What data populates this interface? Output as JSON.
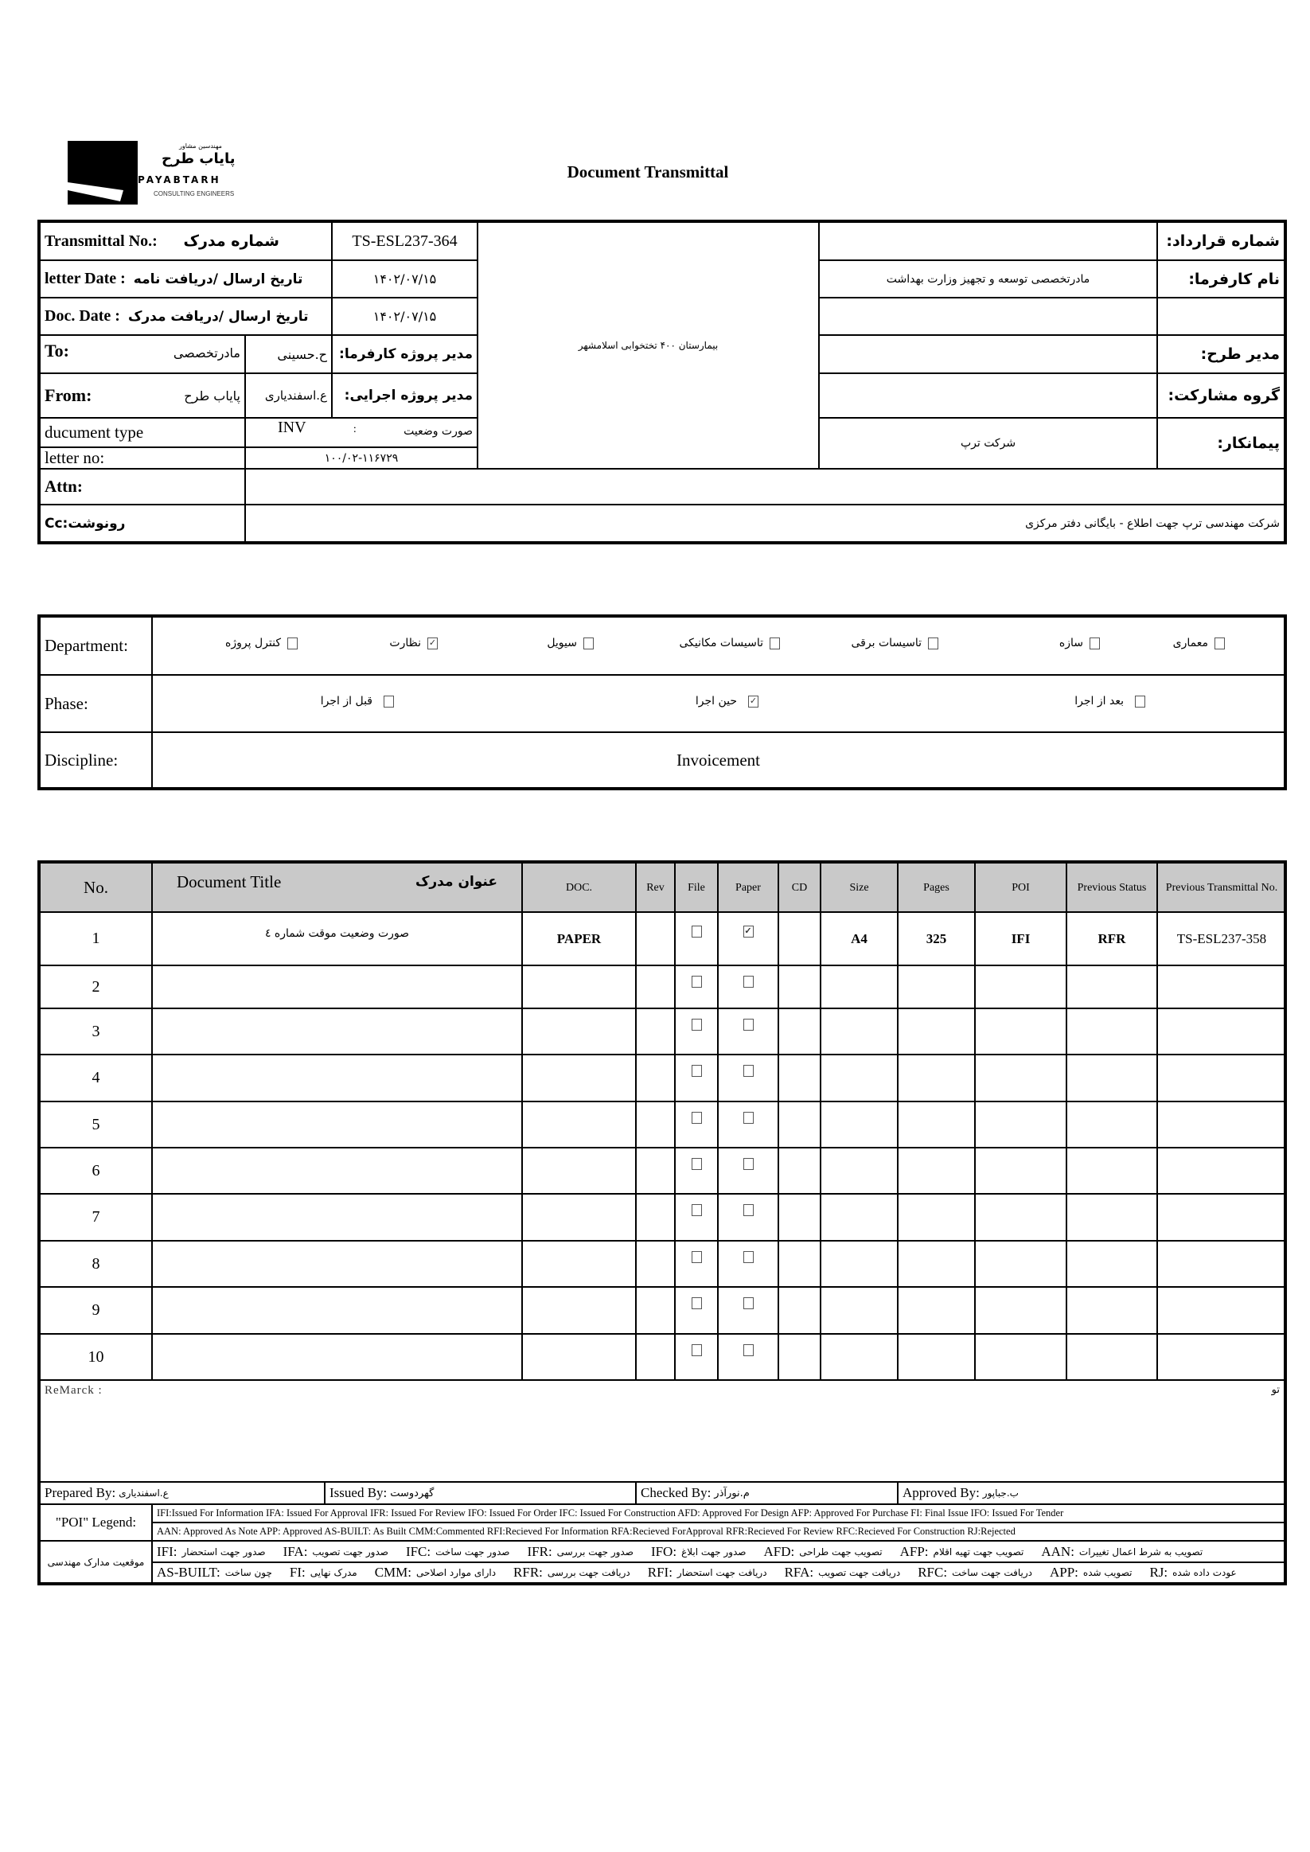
{
  "header": {
    "title": "Document Transmittal",
    "logo": {
      "fa_subtitle": "مهندسین مشاور",
      "fa_name": "پایاب طرح",
      "en_name": "PAYABTARH",
      "en_subtitle": "CONSULTING ENGINEERS"
    }
  },
  "info": {
    "transmittal": {
      "label_en": "Transmittal No.:",
      "label_fa": "شماره مدرک",
      "value": "TS-ESL237-364"
    },
    "letter_date": {
      "label_en": "letter Date  :",
      "label_fa": "تاریخ ارسال /دریافت نامه",
      "value": "۱۴۰۲/۰۷/۱۵"
    },
    "doc_date": {
      "label_en": "Doc. Date  :",
      "label_fa": "تاریخ ارسال /دریافت مدرک",
      "value": "۱۴۰۲/۰۷/۱۵"
    },
    "to": {
      "label": "To:",
      "org": "مادرتخصصی",
      "person": "ح.حسینی",
      "role": "مدیر پروژه کارفرما:"
    },
    "from": {
      "label": "From:",
      "org": "پایاب طرح",
      "person": "ع.اسفندیاری",
      "role": "مدیر پروژه اجرایی:"
    },
    "document_type": {
      "label": "ducument type",
      "code": "INV",
      "sep": ":",
      "value_fa": "صورت وضعیت"
    },
    "letter_no": {
      "label": "letter no:",
      "value": "۱۰۰/۰۲-۱۱۶۷۲۹"
    },
    "project_name": "بیمارستان ۴۰۰ تختخوابی اسلامشهر",
    "contract_no": {
      "label": "شماره قرارداد:",
      "value": ""
    },
    "client": {
      "label": "نام کارفرما:",
      "value": "مادرتخصصی توسعه و تجهیز وزارت بهداشت"
    },
    "project_manager": {
      "label": "مدیر طرح:",
      "value": ""
    },
    "partnership": {
      "label": "گروه مشارکت:",
      "value": ""
    },
    "contractor": {
      "label": "پیمانکار:",
      "value": "شرکت ترپ"
    },
    "attn": {
      "label": "Attn:",
      "value": ""
    },
    "cc": {
      "label": "Cc:رونوشت",
      "value": "شرکت مهندسی ترپ جهت اطلاع - بایگانی دفتر مرکزی"
    }
  },
  "classification": {
    "department": {
      "label": "Department:",
      "options": [
        {
          "label": "کنترل پروژه",
          "checked": false
        },
        {
          "label": "نظارت",
          "checked": true
        },
        {
          "label": "سیویل",
          "checked": false
        },
        {
          "label": "تاسیسات مکانیکی",
          "checked": false
        },
        {
          "label": "تاسیسات برقی",
          "checked": false
        },
        {
          "label": "سازه",
          "checked": false
        },
        {
          "label": "معماری",
          "checked": false
        }
      ]
    },
    "phase": {
      "label": "Phase:",
      "options": [
        {
          "label": "قبل از اجرا",
          "checked": false
        },
        {
          "label": "حین اجرا",
          "checked": true
        },
        {
          "label": "بعد از اجرا",
          "checked": false
        }
      ]
    },
    "discipline": {
      "label": "Discipline:",
      "value": "Invoicement"
    }
  },
  "documents": {
    "columns": {
      "no": "No.",
      "title_en": "Document Title",
      "title_fa": "عنوان مدرک",
      "doc": "DOC.",
      "rev": "Rev",
      "file": "File",
      "paper": "Paper",
      "cd": "CD",
      "size": "Size",
      "pages": "Pages",
      "poi": "POI",
      "prev_status": "Previous Status",
      "prev_transmittal": "Previous Transmittal No."
    },
    "rows": [
      {
        "no": "1",
        "title": "صورت وضعیت موقت شماره ٤",
        "doc": "PAPER",
        "rev": "",
        "file": false,
        "paper": true,
        "cd": "",
        "size": "A4",
        "pages": "325",
        "poi": "IFI",
        "prev_status": "RFR",
        "prev_transmittal": "TS-ESL237-358"
      },
      {
        "no": "2",
        "title": "",
        "doc": "",
        "rev": "",
        "file": false,
        "paper": false,
        "cd": "",
        "size": "",
        "pages": "",
        "poi": "",
        "prev_status": "",
        "prev_transmittal": ""
      },
      {
        "no": "3",
        "title": "",
        "doc": "",
        "rev": "",
        "file": false,
        "paper": false,
        "cd": "",
        "size": "",
        "pages": "",
        "poi": "",
        "prev_status": "",
        "prev_transmittal": ""
      },
      {
        "no": "4",
        "title": "",
        "doc": "",
        "rev": "",
        "file": false,
        "paper": false,
        "cd": "",
        "size": "",
        "pages": "",
        "poi": "",
        "prev_status": "",
        "prev_transmittal": ""
      },
      {
        "no": "5",
        "title": "",
        "doc": "",
        "rev": "",
        "file": false,
        "paper": false,
        "cd": "",
        "size": "",
        "pages": "",
        "poi": "",
        "prev_status": "",
        "prev_transmittal": ""
      },
      {
        "no": "6",
        "title": "",
        "doc": "",
        "rev": "",
        "file": false,
        "paper": false,
        "cd": "",
        "size": "",
        "pages": "",
        "poi": "",
        "prev_status": "",
        "prev_transmittal": ""
      },
      {
        "no": "7",
        "title": "",
        "doc": "",
        "rev": "",
        "file": false,
        "paper": false,
        "cd": "",
        "size": "",
        "pages": "",
        "poi": "",
        "prev_status": "",
        "prev_transmittal": ""
      },
      {
        "no": "8",
        "title": "",
        "doc": "",
        "rev": "",
        "file": false,
        "paper": false,
        "cd": "",
        "size": "",
        "pages": "",
        "poi": "",
        "prev_status": "",
        "prev_transmittal": ""
      },
      {
        "no": "9",
        "title": "",
        "doc": "",
        "rev": "",
        "file": false,
        "paper": false,
        "cd": "",
        "size": "",
        "pages": "",
        "poi": "",
        "prev_status": "",
        "prev_transmittal": ""
      },
      {
        "no": "10",
        "title": "",
        "doc": "",
        "rev": "",
        "file": false,
        "paper": false,
        "cd": "",
        "size": "",
        "pages": "",
        "poi": "",
        "prev_status": "",
        "prev_transmittal": ""
      }
    ]
  },
  "remark": {
    "label": "ReMarck :",
    "note_fa": "تو"
  },
  "signatures": {
    "prepared": {
      "label": "Prepared By:",
      "name": "ع.اسفندیاری"
    },
    "issued": {
      "label": "Issued By:",
      "name": "گهردوست"
    },
    "checked": {
      "label": "Checked By:",
      "name": "م.نورآذر"
    },
    "approved": {
      "label": "Approved By:",
      "name": "ب.جباپور"
    }
  },
  "legend": {
    "label": "\"POI\" Legend:",
    "line1": "IFI:Issued For Information  IFA: Issued For Approval  IFR: Issued For Review   IFO: Issued For Order  IFC: Issued For Construction AFD: Approved For Design AFP: Approved For Purchase  FI: Final Issue  IFO: Issued For Tender",
    "line2": "AAN: Approved As Note  APP: Approved  AS-BUILT: As Built CMM:Commented  RFI:Recieved For Information  RFA:Recieved ForApproval  RFR:Recieved For Review  RFC:Recieved For Construction  RJ:Rejected",
    "fa_label": "موقعیت مدارک مهندسی",
    "fa_row1": [
      {
        "code": "IFI:",
        "meaning": "صدور جهت استحضار"
      },
      {
        "code": "IFA:",
        "meaning": "صدور جهت تصویب"
      },
      {
        "code": "IFC:",
        "meaning": "صدور جهت ساخت"
      },
      {
        "code": "IFR:",
        "meaning": "صدور جهت بررسی"
      },
      {
        "code": "IFO:",
        "meaning": "صدور جهت ابلاغ"
      },
      {
        "code": "AFD:",
        "meaning": "تصویب جهت طراحی"
      },
      {
        "code": "AFP:",
        "meaning": "تصویب جهت تهیه اقلام"
      },
      {
        "code": "AAN:",
        "meaning": "تصویب به شرط اعمال تغییرات"
      }
    ],
    "fa_row2": [
      {
        "code": "AS-BUILT:",
        "meaning": "چون ساخت"
      },
      {
        "code": "FI:",
        "meaning": "مدرک نهایی"
      },
      {
        "code": "CMM:",
        "meaning": "دارای موارد اصلاحی"
      },
      {
        "code": "RFR:",
        "meaning": "دریافت جهت بررسی"
      },
      {
        "code": "RFI:",
        "meaning": "دریافت جهت استحضار"
      },
      {
        "code": "RFA:",
        "meaning": "دریافت جهت تصویب"
      },
      {
        "code": "RFC:",
        "meaning": "دریافت جهت ساخت"
      },
      {
        "code": "APP:",
        "meaning": "تصویب شده"
      },
      {
        "code": "RJ:",
        "meaning": "عودت داده شده"
      }
    ]
  }
}
